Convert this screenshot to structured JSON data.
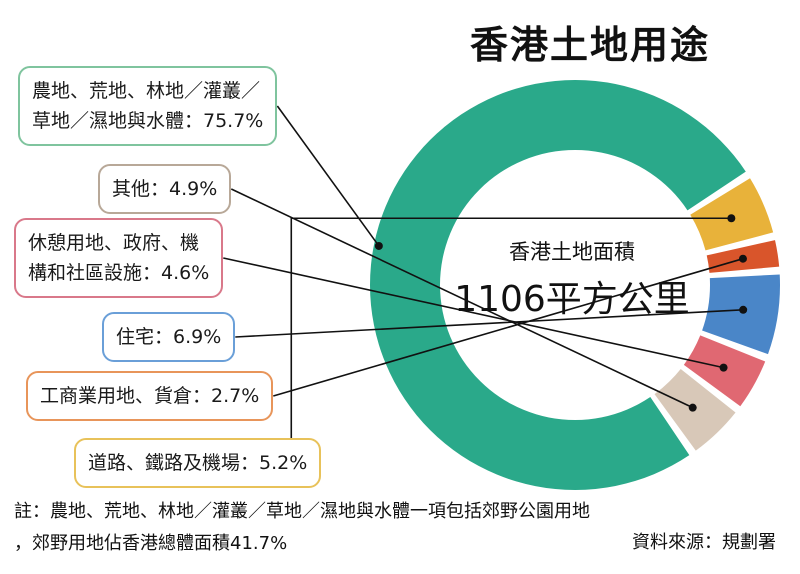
{
  "chart_data": {
    "type": "pie",
    "title": "香港土地用途",
    "center_label": "香港土地面積",
    "center_value": "1106平方公里",
    "categories": [
      "農地、荒地、林地／灌叢／草地／濕地與水體",
      "道路、鐵路及機場",
      "工商業用地、貨倉",
      "住宅",
      "休憩用地、政府、機構和社區設施",
      "其他"
    ],
    "values": [
      75.7,
      5.2,
      2.7,
      6.9,
      4.6,
      4.9
    ],
    "colors": [
      "#2aa98a",
      "#e8b23a",
      "#d9552b",
      "#4a86c8",
      "#e06872",
      "#d8c8b8"
    ],
    "labels": [
      {
        "lines": [
          "農地、荒地、林地／灌叢／",
          "草地／濕地與水體：75.7%"
        ],
        "border": "#7fc49e"
      },
      {
        "lines": [
          "道路、鐵路及機場：5.2%"
        ],
        "border": "#e8c25a"
      },
      {
        "lines": [
          "工商業用地、貨倉：2.7%"
        ],
        "border": "#e8955a"
      },
      {
        "lines": [
          "住宅：6.9%"
        ],
        "border": "#6a9fd8"
      },
      {
        "lines": [
          "休憩用地、政府、機",
          "構和社區設施：4.6%"
        ],
        "border": "#d9788a"
      },
      {
        "lines": [
          "其他：4.9%"
        ],
        "border": "#b8a898"
      }
    ]
  },
  "note_lines": [
    "註：農地、荒地、林地／灌叢／草地／濕地與水體一項包括郊野公園用地",
    "，郊野用地佔香港總體面積41.7%"
  ],
  "source": "資料來源：規劃署"
}
